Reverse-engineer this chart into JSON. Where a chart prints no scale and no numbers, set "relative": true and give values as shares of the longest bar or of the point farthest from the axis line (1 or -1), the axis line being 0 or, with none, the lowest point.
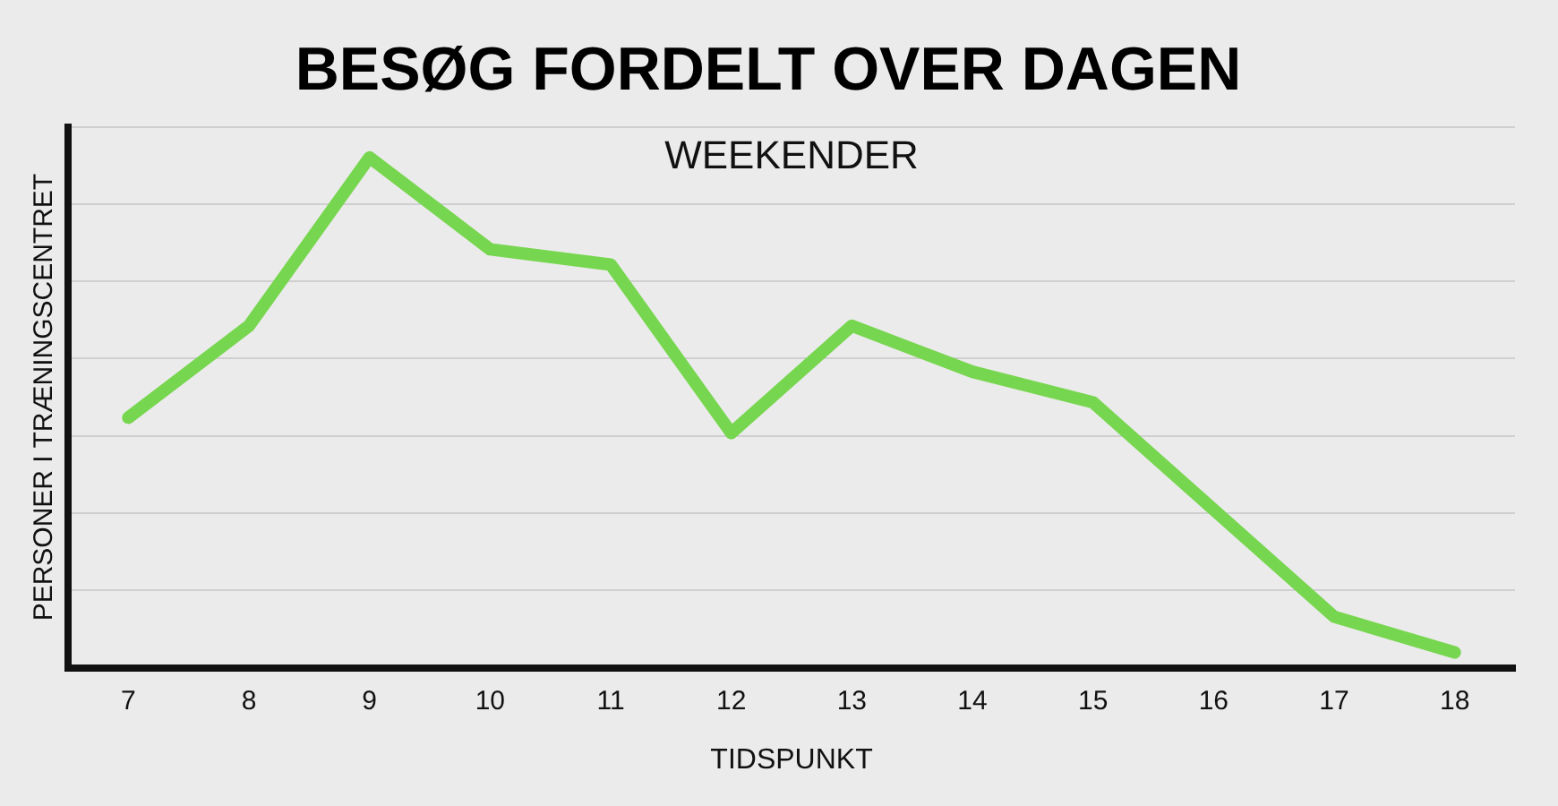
{
  "chart_data": {
    "type": "line",
    "title": "BESØG FORDELT OVER DAGEN",
    "subtitle": "WEEKENDER",
    "xlabel": "TIDSPUNKT",
    "ylabel": "PERSONER I TRÆNINGSCENTRET",
    "categories": [
      "7",
      "8",
      "9",
      "10",
      "11",
      "12",
      "13",
      "14",
      "15",
      "16",
      "17",
      "18"
    ],
    "series": [
      {
        "color": "#77d64f",
        "values": [
          0.49,
          0.67,
          1,
          0.82,
          0.79,
          0.46,
          0.67,
          0.58,
          0.52,
          0.31,
          0.1,
          0.03
        ]
      }
    ],
    "relative": true,
    "grid": "y",
    "legend": false,
    "marker": "none",
    "line_style": "solid"
  }
}
